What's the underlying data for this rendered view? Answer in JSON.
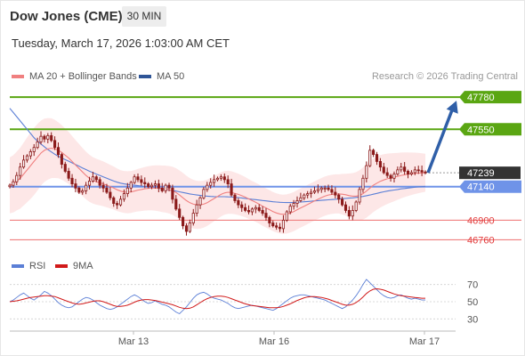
{
  "header": {
    "title": "Dow Jones (CME)",
    "timeframe": "30 MIN",
    "datetime": "Tuesday, March 17, 2026 1:03:00 AM CET"
  },
  "legend": {
    "ma20_label": "MA 20 + Bollinger Bands",
    "ma50_label": "MA 50",
    "credit": "Research © 2026 Trading Central",
    "rsi_label": "RSI",
    "rsi_ma_label": "9MA"
  },
  "colors": {
    "resistance": "#5aa612",
    "support": "#f08080",
    "ma20": "#f08080",
    "ma50": "#5b7fd6",
    "bands_fill": "#fde3e3",
    "pivot": "#6f93e8",
    "current": "#333333",
    "arrow": "#2f5fa8",
    "candle": "#8b1a1a",
    "rsi": "#5b7fd6",
    "rsi_ma": "#d11a1a"
  },
  "chart_data": [
    {
      "type": "candlestick",
      "ylim": [
        46680,
        47870
      ],
      "x_axis_labels": [
        "Mar 13",
        "Mar 16",
        "Mar 17"
      ],
      "levels": [
        {
          "value": 47780,
          "label": "47780",
          "kind": "resistance"
        },
        {
          "value": 47550,
          "label": "47550",
          "kind": "resistance"
        },
        {
          "value": 47239,
          "label": "47239",
          "kind": "current"
        },
        {
          "value": 47140,
          "label": "47140",
          "kind": "pivot"
        },
        {
          "value": 46900,
          "label": "46900",
          "kind": "support"
        },
        {
          "value": 46760,
          "label": "46760",
          "kind": "support"
        }
      ],
      "closes": [
        47150,
        47175,
        47220,
        47280,
        47330,
        47360,
        47390,
        47420,
        47460,
        47500,
        47480,
        47505,
        47470,
        47420,
        47370,
        47300,
        47250,
        47200,
        47160,
        47130,
        47100,
        47110,
        47150,
        47180,
        47210,
        47190,
        47150,
        47130,
        47100,
        47060,
        47020,
        47010,
        47050,
        47090,
        47130,
        47170,
        47210,
        47190,
        47170,
        47160,
        47140,
        47150,
        47160,
        47130,
        47110,
        47150,
        47130,
        47050,
        46980,
        46920,
        46860,
        46820,
        46880,
        46950,
        47010,
        47060,
        47120,
        47150,
        47170,
        47190,
        47200,
        47210,
        47190,
        47160,
        47080,
        47040,
        47010,
        46990,
        46970,
        46960,
        46980,
        46990,
        46970,
        46950,
        46920,
        46880,
        46860,
        46850,
        46840,
        46900,
        46960,
        47000,
        47020,
        47040,
        47060,
        47080,
        47090,
        47100,
        47110,
        47120,
        47130,
        47130,
        47120,
        47100,
        47080,
        47050,
        47010,
        46970,
        46930,
        46970,
        47030,
        47120,
        47200,
        47290,
        47400,
        47370,
        47320,
        47280,
        47240,
        47220,
        47200,
        47230,
        47260,
        47280,
        47250,
        47230,
        47240,
        47260,
        47255,
        47245,
        47239
      ],
      "ma20": [
        47150,
        47160,
        47180,
        47200,
        47230,
        47260,
        47290,
        47320,
        47350,
        47380,
        47400,
        47410,
        47415,
        47410,
        47400,
        47385,
        47365,
        47345,
        47320,
        47295,
        47270,
        47245,
        47220,
        47200,
        47185,
        47175,
        47168,
        47160,
        47150,
        47140,
        47130,
        47118,
        47108,
        47102,
        47100,
        47102,
        47108,
        47115,
        47120,
        47125,
        47128,
        47130,
        47130,
        47128,
        47125,
        47122,
        47118,
        47110,
        47098,
        47080,
        47060,
        47040,
        47025,
        47015,
        47010,
        47010,
        47015,
        47025,
        47040,
        47055,
        47070,
        47085,
        47095,
        47100,
        47098,
        47092,
        47085,
        47075,
        47065,
        47052,
        47040,
        47028,
        47015,
        47000,
        46988,
        46975,
        46962,
        46952,
        46945,
        46942,
        46945,
        46952,
        46962,
        46975,
        46988,
        47000,
        47012,
        47025,
        47038,
        47050,
        47062,
        47072,
        47080,
        47085,
        47088,
        47088,
        47086,
        47082,
        47076,
        47072,
        47072,
        47078,
        47090,
        47108,
        47130,
        47150,
        47165,
        47178,
        47188,
        47196,
        47202,
        47208,
        47214,
        47220,
        47225,
        47229,
        47232,
        47235,
        47237,
        47238,
        47239
      ],
      "ma50": [
        47700,
        47670,
        47640,
        47610,
        47580,
        47550,
        47520,
        47490,
        47465,
        47445,
        47425,
        47405,
        47388,
        47372,
        47358,
        47345,
        47333,
        47322,
        47310,
        47298,
        47286,
        47274,
        47262,
        47250,
        47240,
        47230,
        47220,
        47210,
        47200,
        47190,
        47180,
        47172,
        47165,
        47160,
        47156,
        47153,
        47150,
        47147,
        47144,
        47141,
        47138,
        47135,
        47132,
        47128,
        47124,
        47120,
        47116,
        47112,
        47108,
        47103,
        47098,
        47093,
        47088,
        47084,
        47080,
        47077,
        47074,
        47072,
        47070,
        47069,
        47068,
        47068,
        47068,
        47067,
        47066,
        47064,
        47062,
        47059,
        47056,
        47053,
        47050,
        47047,
        47044,
        47041,
        47038,
        47035,
        47032,
        47030,
        47028,
        47027,
        47026,
        47026,
        47027,
        47028,
        47030,
        47032,
        47034,
        47036,
        47038,
        47040,
        47042,
        47044,
        47046,
        47048,
        47050,
        47052,
        47054,
        47056,
        47058,
        47060,
        47063,
        47066,
        47070,
        47075,
        47080,
        47086,
        47092,
        47098,
        47103,
        47108,
        47112,
        47116,
        47120,
        47124,
        47127,
        47130,
        47133,
        47136,
        47138,
        47140,
        47142
      ],
      "band_width": [
        200,
        205,
        210,
        218,
        225,
        232,
        238,
        240,
        238,
        232,
        226,
        220,
        214,
        208,
        200,
        195,
        190,
        186,
        182,
        178,
        175,
        172,
        170,
        168,
        166,
        164,
        162,
        160,
        158,
        156,
        154,
        152,
        150,
        150,
        150,
        150,
        150,
        152,
        154,
        156,
        158,
        160,
        162,
        164,
        166,
        168,
        170,
        172,
        174,
        176,
        178,
        178,
        176,
        174,
        172,
        170,
        168,
        166,
        164,
        162,
        160,
        158,
        156,
        154,
        152,
        150,
        148,
        146,
        144,
        142,
        140,
        140,
        140,
        140,
        140,
        140,
        140,
        140,
        140,
        140,
        140,
        140,
        140,
        140,
        140,
        140,
        140,
        140,
        140,
        140,
        140,
        140,
        140,
        140,
        140,
        140,
        145,
        150,
        158,
        165,
        172,
        180,
        186,
        190,
        192,
        192,
        190,
        188,
        184,
        180,
        176,
        172,
        168,
        164,
        160,
        156,
        152,
        148,
        144,
        140,
        136
      ],
      "projection": {
        "from": 47239,
        "to": 47780
      }
    },
    {
      "type": "line",
      "name": "RSI",
      "ylim": [
        20,
        80
      ],
      "ticks": [
        70,
        50,
        30
      ],
      "rsi": [
        50,
        52,
        55,
        58,
        60,
        57,
        54,
        52,
        55,
        58,
        62,
        60,
        57,
        53,
        49,
        46,
        44,
        43,
        44,
        47,
        50,
        53,
        55,
        54,
        52,
        49,
        46,
        44,
        42,
        41,
        42,
        44,
        47,
        50,
        53,
        56,
        58,
        56,
        53,
        50,
        48,
        49,
        51,
        49,
        47,
        46,
        44,
        41,
        38,
        36,
        40,
        44,
        49,
        54,
        58,
        60,
        61,
        59,
        56,
        54,
        53,
        52,
        50,
        48,
        45,
        43,
        42,
        43,
        44,
        45,
        46,
        45,
        44,
        43,
        42,
        41,
        40,
        42,
        45,
        48,
        51,
        54,
        56,
        57,
        58,
        58,
        57,
        56,
        55,
        54,
        53,
        52,
        50,
        48,
        46,
        44,
        42,
        44,
        48,
        52,
        57,
        63,
        70,
        76,
        72,
        68,
        64,
        60,
        57,
        55,
        54,
        55,
        57,
        58,
        56,
        54,
        53,
        54,
        53,
        52,
        52
      ],
      "rsi_ma": [
        50,
        50.5,
        51,
        52,
        53,
        54,
        55,
        55.5,
        56,
        56.5,
        57,
        57,
        56.5,
        56,
        54.5,
        53,
        51.5,
        50,
        48.5,
        47.5,
        47,
        47.5,
        48.5,
        49.5,
        50.5,
        51,
        51,
        50,
        48.5,
        47,
        45.5,
        44.5,
        44.5,
        45,
        46,
        47.5,
        49.5,
        51,
        52,
        52.5,
        52.5,
        52,
        51.5,
        50.5,
        49.5,
        48.5,
        47.5,
        46.5,
        45,
        43.5,
        42.5,
        42,
        42.5,
        44,
        46.5,
        49,
        51.5,
        53.5,
        55,
        56,
        56.5,
        56.5,
        56,
        55,
        53.5,
        52,
        50.5,
        49,
        47.5,
        46.5,
        45.5,
        45,
        44.5,
        44,
        43.5,
        43,
        43,
        43,
        43.5,
        44.5,
        46,
        47.5,
        49.5,
        51.5,
        53,
        54.5,
        55.5,
        56,
        56,
        55.5,
        55,
        54,
        53,
        51.5,
        50,
        48.5,
        47,
        46,
        46,
        47,
        49,
        52,
        55.5,
        59.5,
        62.5,
        64.5,
        65,
        64.5,
        63.5,
        62,
        60.5,
        59,
        58,
        57,
        56.5,
        56,
        55.5,
        55,
        54.5,
        54,
        54
      ]
    }
  ]
}
